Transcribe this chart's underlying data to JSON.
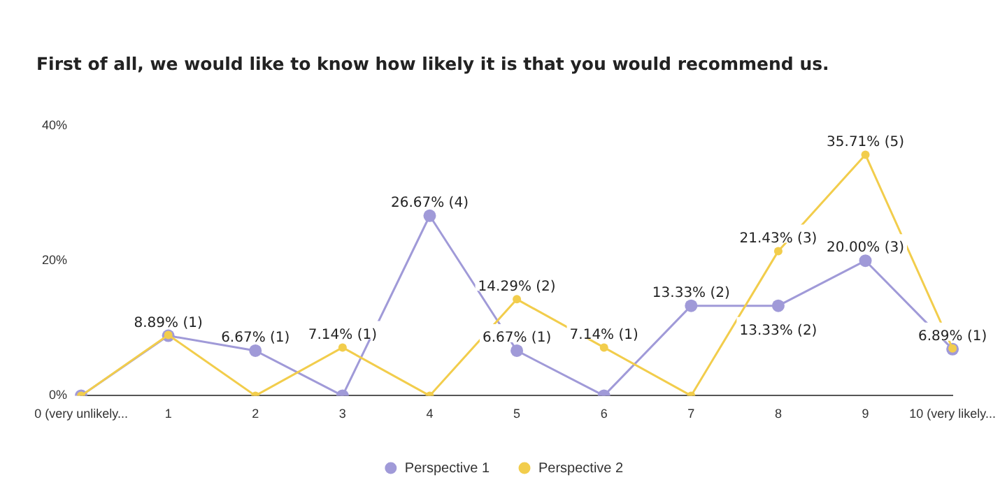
{
  "chart_data": {
    "type": "line",
    "title": "First of all, we would like to know how likely it is that you would recommend us.",
    "categories": [
      "0 (very unlikely...",
      "1",
      "2",
      "3",
      "4",
      "5",
      "6",
      "7",
      "8",
      "9",
      "10 (very likely..."
    ],
    "series": [
      {
        "name": "Perspective 1",
        "color": "#a09ad8",
        "values": [
          0,
          8.89,
          6.67,
          0,
          26.67,
          6.67,
          0,
          13.33,
          13.33,
          20.0,
          6.89
        ],
        "value_labels": [
          null,
          "8.89% (1)",
          "6.67% (1)",
          null,
          "26.67% (4)",
          "6.67% (1)",
          null,
          "13.33% (2)",
          "13.33% (2)",
          "20.00% (3)",
          "6.89% (1)"
        ]
      },
      {
        "name": "Perspective 2",
        "color": "#f2cd4c",
        "values": [
          0,
          9,
          0,
          7.14,
          0,
          14.29,
          7.14,
          0,
          21.43,
          35.71,
          7
        ],
        "value_labels": [
          null,
          null,
          null,
          "7.14% (1)",
          null,
          "14.29% (2)",
          "7.14% (1)",
          null,
          "21.43% (3)",
          "35.71% (5)",
          null
        ]
      }
    ],
    "ylim": [
      0,
      40
    ],
    "yticks": [
      {
        "value": 0,
        "label": "0%"
      },
      {
        "value": 20,
        "label": "20%"
      },
      {
        "value": 40,
        "label": "40%"
      }
    ],
    "grid": false,
    "legend": "bottom",
    "marker": "circle",
    "line_style": "solid"
  }
}
